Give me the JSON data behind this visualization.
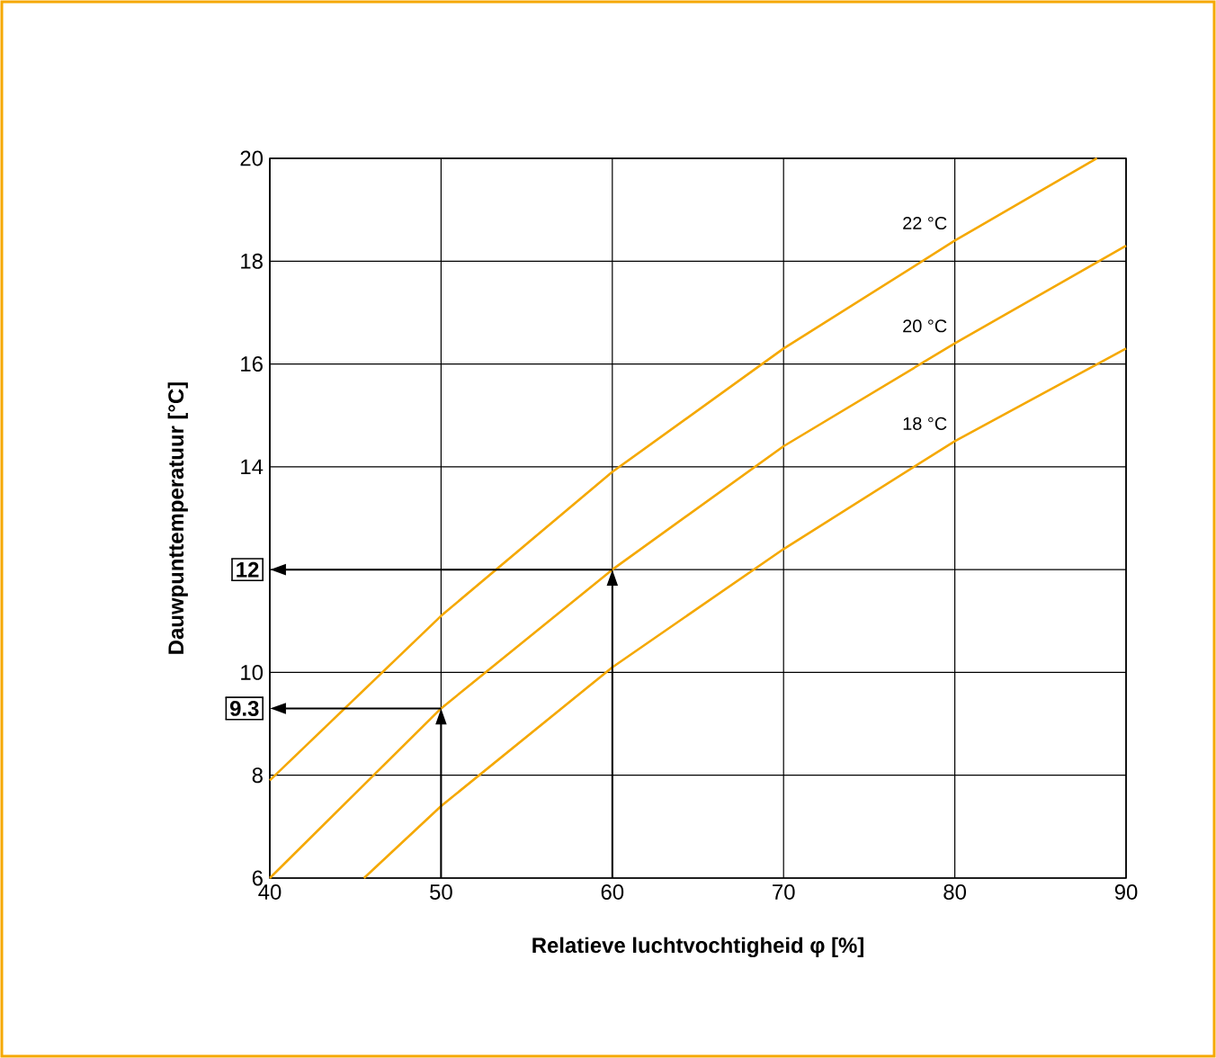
{
  "chart_data": {
    "type": "line",
    "xlabel": "Relatieve luchtvochtigheid φ [%]",
    "ylabel": "Dauwpunttemperatuur [°C]",
    "series": [
      {
        "name": "22 °C",
        "color": "#f5a800",
        "x": [
          40,
          50,
          60,
          70,
          80,
          88.3
        ],
        "values": [
          7.9,
          11.1,
          13.9,
          16.3,
          18.4,
          20
        ]
      },
      {
        "name": "20 °C",
        "color": "#f5a800",
        "x": [
          40,
          50,
          60,
          70,
          80,
          90
        ],
        "values": [
          6.0,
          9.3,
          12.0,
          14.4,
          16.4,
          18.3
        ]
      },
      {
        "name": "18 °C",
        "color": "#f5a800",
        "x": [
          45.5,
          50,
          60,
          70,
          80,
          90
        ],
        "values": [
          6.0,
          7.4,
          10.1,
          12.4,
          14.5,
          16.3
        ]
      }
    ],
    "xlim": [
      40,
      90
    ],
    "ylim": [
      6,
      20
    ],
    "xticks": [
      40,
      50,
      60,
      70,
      80,
      90
    ],
    "yticks": [
      6,
      8,
      {
        "value": 9.3,
        "label": "9.3"
      },
      10,
      {
        "value": 12,
        "label": "12"
      },
      14,
      16,
      18,
      20
    ],
    "grid": true,
    "marker": "none",
    "line_style": "solid"
  }
}
